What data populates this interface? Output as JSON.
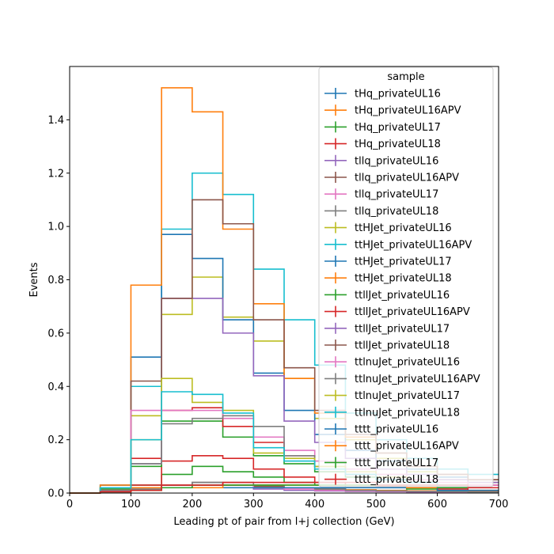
{
  "chart_data": {
    "type": "line",
    "drawstyle": "step",
    "title": "",
    "xlabel": "Leading pt of pair from l+j collection (GeV)",
    "ylabel": "Events",
    "xlim": [
      0,
      700
    ],
    "ylim": [
      0,
      1.6
    ],
    "xticks": [
      0,
      100,
      200,
      300,
      400,
      500,
      600,
      700
    ],
    "yticks": [
      0.0,
      0.2,
      0.4,
      0.6,
      0.8,
      1.0,
      1.2,
      1.4
    ],
    "ytick_labels": [
      "0.0",
      "0.2",
      "0.4",
      "0.6",
      "0.8",
      "1.0",
      "1.2",
      "1.4"
    ],
    "bin_edges": [
      0,
      50,
      100,
      150,
      200,
      250,
      300,
      350,
      400,
      450,
      500,
      550,
      600,
      650,
      700
    ],
    "legend": {
      "title": "sample",
      "location": "top-right"
    },
    "series": [
      {
        "name": "tHq_privateUL16",
        "color": "#1f77b4",
        "values": [
          0,
          0.01,
          0.02,
          0.03,
          0.03,
          0.03,
          0.02,
          0.02,
          0.015,
          0.012,
          0.01,
          0.008,
          0.006,
          0.005
        ]
      },
      {
        "name": "tHq_privateUL16APV",
        "color": "#ff7f0e",
        "values": [
          0,
          0.01,
          0.02,
          0.03,
          0.03,
          0.03,
          0.02,
          0.02,
          0.015,
          0.012,
          0.01,
          0.008,
          0.006,
          0.005
        ]
      },
      {
        "name": "tHq_privateUL17",
        "color": "#2ca02c",
        "values": [
          0,
          0.015,
          0.03,
          0.07,
          0.1,
          0.08,
          0.06,
          0.04,
          0.03,
          0.02,
          0.02,
          0.015,
          0.01,
          0.01
        ]
      },
      {
        "name": "tHq_privateUL18",
        "color": "#d62728",
        "values": [
          0,
          0.02,
          0.03,
          0.12,
          0.14,
          0.13,
          0.09,
          0.06,
          0.04,
          0.03,
          0.025,
          0.02,
          0.015,
          0.01
        ]
      },
      {
        "name": "tllq_privateUL16",
        "color": "#9467bd",
        "values": [
          0,
          0.005,
          0.01,
          0.02,
          0.02,
          0.02,
          0.015,
          0.01,
          0.008,
          0.006,
          0.005,
          0.004,
          0.003,
          0.003
        ]
      },
      {
        "name": "tllq_privateUL16APV",
        "color": "#8c564b",
        "values": [
          0,
          0.005,
          0.01,
          0.03,
          0.04,
          0.03,
          0.025,
          0.02,
          0.015,
          0.01,
          0.008,
          0.006,
          0.005,
          0.004
        ]
      },
      {
        "name": "tllq_privateUL17",
        "color": "#e377c2",
        "values": [
          0,
          0.005,
          0.01,
          0.02,
          0.03,
          0.03,
          0.02,
          0.015,
          0.01,
          0.008,
          0.006,
          0.005,
          0.004,
          0.003
        ]
      },
      {
        "name": "tllq_privateUL18",
        "color": "#7f7f7f",
        "values": [
          0,
          0.005,
          0.015,
          0.03,
          0.04,
          0.04,
          0.03,
          0.02,
          0.015,
          0.01,
          0.008,
          0.006,
          0.005,
          0.004
        ]
      },
      {
        "name": "ttHJet_privateUL16",
        "color": "#bcbd22",
        "values": [
          0,
          0.02,
          0.29,
          0.67,
          0.81,
          0.66,
          0.57,
          0.43,
          0.28,
          0.2,
          0.13,
          0.08,
          0.05,
          0.04
        ]
      },
      {
        "name": "ttHJet_privateUL16APV",
        "color": "#17becf",
        "values": [
          0,
          0.03,
          0.4,
          0.99,
          1.2,
          1.12,
          0.84,
          0.65,
          0.48,
          0.3,
          0.2,
          0.13,
          0.09,
          0.07
        ]
      },
      {
        "name": "ttHJet_privateUL17",
        "color": "#1f77b4",
        "values": [
          0,
          0.03,
          0.51,
          0.97,
          0.88,
          0.65,
          0.45,
          0.31,
          0.22,
          0.16,
          0.12,
          0.09,
          0.06,
          0.05
        ]
      },
      {
        "name": "ttHJet_privateUL18",
        "color": "#ff7f0e",
        "values": [
          0,
          0.03,
          0.78,
          1.52,
          1.43,
          0.99,
          0.71,
          0.43,
          0.3,
          0.21,
          0.15,
          0.1,
          0.07,
          0.05
        ]
      },
      {
        "name": "ttllJet_privateUL16",
        "color": "#2ca02c",
        "values": [
          0,
          0.01,
          0.1,
          0.27,
          0.27,
          0.21,
          0.14,
          0.11,
          0.08,
          0.06,
          0.05,
          0.04,
          0.03,
          0.02
        ]
      },
      {
        "name": "ttllJet_privateUL16APV",
        "color": "#d62728",
        "values": [
          0,
          0.01,
          0.13,
          0.31,
          0.32,
          0.25,
          0.19,
          0.14,
          0.1,
          0.07,
          0.05,
          0.04,
          0.03,
          0.03
        ]
      },
      {
        "name": "ttllJet_privateUL17",
        "color": "#9467bd",
        "values": [
          0,
          0.01,
          0.11,
          0.73,
          0.73,
          0.6,
          0.44,
          0.27,
          0.19,
          0.13,
          0.09,
          0.07,
          0.05,
          0.04
        ]
      },
      {
        "name": "ttllJet_privateUL18",
        "color": "#8c564b",
        "values": [
          0,
          0.02,
          0.42,
          0.73,
          1.1,
          1.01,
          0.65,
          0.47,
          0.31,
          0.22,
          0.15,
          0.1,
          0.07,
          0.05
        ]
      },
      {
        "name": "ttlnuJet_privateUL16",
        "color": "#e377c2",
        "values": [
          0,
          0.01,
          0.31,
          0.31,
          0.31,
          0.28,
          0.21,
          0.16,
          0.12,
          0.09,
          0.07,
          0.05,
          0.04,
          0.03
        ]
      },
      {
        "name": "ttlnuJet_privateUL16APV",
        "color": "#7f7f7f",
        "values": [
          0,
          0.01,
          0.11,
          0.26,
          0.28,
          0.29,
          0.25,
          0.14,
          0.1,
          0.07,
          0.05,
          0.04,
          0.03,
          0.02
        ]
      },
      {
        "name": "ttlnuJet_privateUL17",
        "color": "#bcbd22",
        "values": [
          0,
          0.02,
          0.2,
          0.43,
          0.34,
          0.31,
          0.15,
          0.13,
          0.1,
          0.08,
          0.06,
          0.04,
          0.03,
          0.02
        ]
      },
      {
        "name": "ttlnuJet_privateUL18",
        "color": "#17becf",
        "values": [
          0,
          0.02,
          0.2,
          0.38,
          0.37,
          0.3,
          0.17,
          0.12,
          0.09,
          0.07,
          0.05,
          0.04,
          0.03,
          0.02
        ]
      },
      {
        "name": "tttt_privateUL16",
        "color": "#1f77b4",
        "values": [
          0,
          0.005,
          0.01,
          0.02,
          0.02,
          0.02,
          0.02,
          0.02,
          0.02,
          0.02,
          0.02,
          0.02,
          0.01,
          0.01
        ]
      },
      {
        "name": "tttt_privateUL16APV",
        "color": "#ff7f0e",
        "values": [
          0,
          0.005,
          0.01,
          0.02,
          0.02,
          0.03,
          0.03,
          0.03,
          0.03,
          0.03,
          0.03,
          0.02,
          0.02,
          0.02
        ]
      },
      {
        "name": "tttt_privateUL17",
        "color": "#2ca02c",
        "values": [
          0,
          0.005,
          0.01,
          0.02,
          0.03,
          0.03,
          0.03,
          0.03,
          0.03,
          0.03,
          0.03,
          0.03,
          0.02,
          0.02
        ]
      },
      {
        "name": "tttt_privateUL18",
        "color": "#d62728",
        "values": [
          0,
          0.005,
          0.01,
          0.03,
          0.03,
          0.04,
          0.04,
          0.04,
          0.04,
          0.04,
          0.03,
          0.03,
          0.03,
          0.02
        ]
      }
    ]
  }
}
